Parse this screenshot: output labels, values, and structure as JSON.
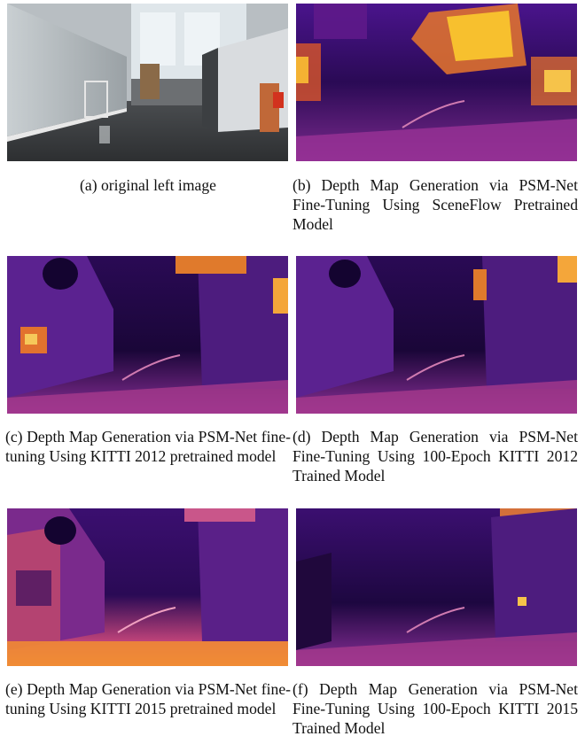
{
  "figure": {
    "panels": [
      {
        "id": "a",
        "kind": "photo",
        "caption": "(a) original left image"
      },
      {
        "id": "b",
        "kind": "depth",
        "caption": "(b) Depth Map Generation via PSM-Net Fine-Tuning Using SceneFlow Pretrained Model"
      },
      {
        "id": "c",
        "kind": "depth",
        "caption": "(c) Depth Map Generation via PSM-Net fine-tuning Using KITTI 2012 pretrained model"
      },
      {
        "id": "d",
        "kind": "depth",
        "caption": "(d) Depth Map Generation via PSM-Net Fine-Tuning Using 100-Epoch KITTI 2012 Trained Model"
      },
      {
        "id": "e",
        "kind": "depth",
        "caption": "(e) Depth Map Generation via PSM-Net fine-tuning Using KITTI 2015 pretrained model"
      },
      {
        "id": "f",
        "kind": "depth",
        "caption": "(f) Depth Map Generation via PSM-Net Fine-Tuning Using 100-Epoch KITTI 2015 Trained Model"
      }
    ],
    "colormap": [
      "#0d0221",
      "#3b0f70",
      "#6a1b9a",
      "#b6306b",
      "#f37a2d",
      "#fcd34d"
    ]
  }
}
